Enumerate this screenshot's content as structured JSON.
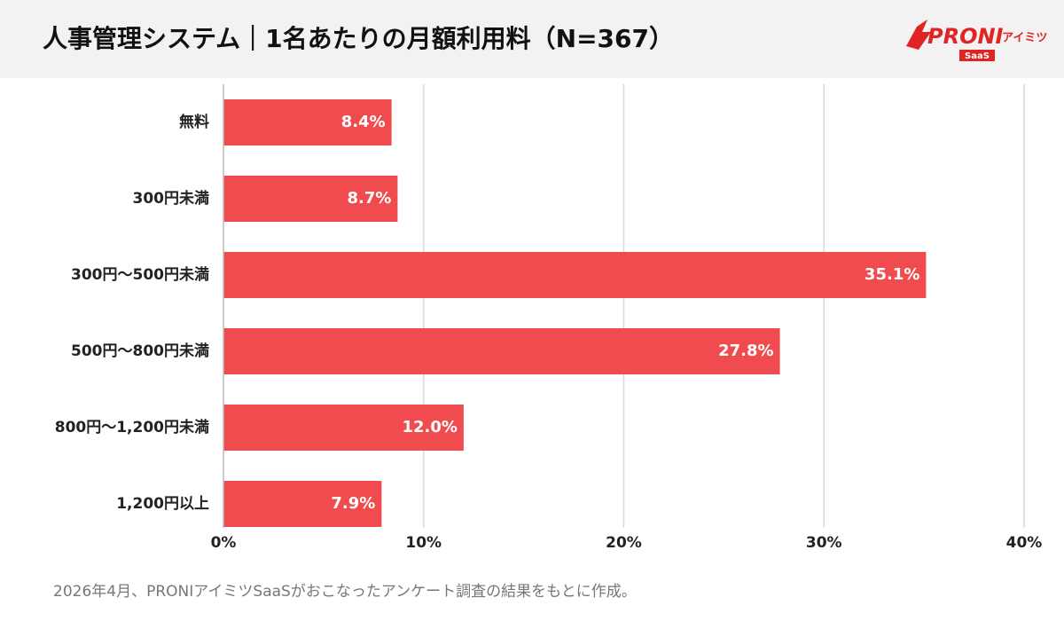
{
  "chart_data": {
    "type": "bar",
    "orientation": "horizontal",
    "title": "人事管理システム｜1名あたりの月額利用料（N=367）",
    "categories": [
      "無料",
      "300円未満",
      "300円〜500円未満",
      "500円〜800円未満",
      "800円〜1,200円未満",
      "1,200円以上"
    ],
    "values": [
      8.4,
      8.7,
      35.1,
      27.8,
      12.0,
      7.9
    ],
    "value_labels": [
      "8.4%",
      "8.7%",
      "35.1%",
      "27.8%",
      "12.0%",
      "7.9%"
    ],
    "color": "#f04c4f",
    "xlim": [
      0,
      40
    ],
    "xticks": [
      {
        "value": 0,
        "label": "0%"
      },
      {
        "value": 10,
        "label": "10%"
      },
      {
        "value": 20,
        "label": "20%"
      },
      {
        "value": 30,
        "label": "30%"
      },
      {
        "value": 40,
        "label": "40%"
      }
    ],
    "grid": true,
    "footnote": "2026年4月、PRONIアイミツSaaSがおこなったアンケート調査の結果をもとに作成。"
  },
  "logo": {
    "brand": "PRONI",
    "suffix": "アイミツ",
    "badge": "SaaS"
  }
}
